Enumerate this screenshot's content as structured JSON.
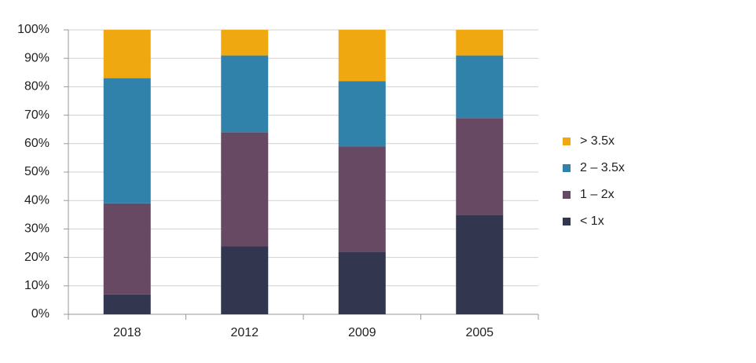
{
  "chart_data": {
    "type": "stacked_bar",
    "categories": [
      "2018",
      "2012",
      "2009",
      "2005"
    ],
    "series": [
      {
        "name": "< 1x",
        "color": "#32374f",
        "values": [
          7,
          24,
          22,
          35
        ]
      },
      {
        "name": "1 – 2x",
        "color": "#684963",
        "values": [
          32,
          40,
          37,
          34
        ]
      },
      {
        "name": "2 – 3.5x",
        "color": "#3182aa",
        "values": [
          44,
          27,
          23,
          22
        ]
      },
      {
        "name": "> 3.5x",
        "color": "#f0a810",
        "values": [
          17,
          9,
          18,
          9
        ]
      }
    ],
    "ylim": [
      0,
      100
    ],
    "yticks": [
      {
        "value": 0,
        "label": "0%"
      },
      {
        "value": 10,
        "label": "10%"
      },
      {
        "value": 20,
        "label": "20%"
      },
      {
        "value": 30,
        "label": "30%"
      },
      {
        "value": 40,
        "label": "40%"
      },
      {
        "value": 50,
        "label": "50%"
      },
      {
        "value": 60,
        "label": "60%"
      },
      {
        "value": 70,
        "label": "70%"
      },
      {
        "value": 80,
        "label": "80%"
      },
      {
        "value": 90,
        "label": "90%"
      },
      {
        "value": 100,
        "label": "100%"
      }
    ],
    "grid": true,
    "legend": "right"
  }
}
